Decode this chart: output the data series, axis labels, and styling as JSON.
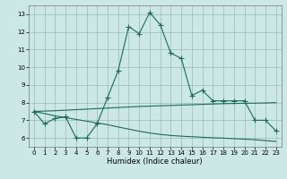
{
  "xlabel": "Humidex (Indice chaleur)",
  "x": [
    0,
    1,
    2,
    3,
    4,
    5,
    6,
    7,
    8,
    9,
    10,
    11,
    12,
    13,
    14,
    15,
    16,
    17,
    18,
    19,
    20,
    21,
    22,
    23
  ],
  "y_peak": [
    7.5,
    6.8,
    7.1,
    7.2,
    6.0,
    6.0,
    6.8,
    8.3,
    9.8,
    12.3,
    11.9,
    13.1,
    12.4,
    10.8,
    10.5,
    8.4,
    8.7,
    8.1,
    8.1,
    8.1,
    8.1,
    7.0,
    7.0,
    6.4
  ],
  "y_upper": [
    7.5,
    7.52,
    7.54,
    7.57,
    7.6,
    7.63,
    7.66,
    7.69,
    7.72,
    7.75,
    7.78,
    7.8,
    7.82,
    7.84,
    7.86,
    7.88,
    7.9,
    7.92,
    7.94,
    7.95,
    7.96,
    7.97,
    7.98,
    8.0
  ],
  "y_lower": [
    7.5,
    7.38,
    7.25,
    7.15,
    7.05,
    6.95,
    6.85,
    6.75,
    6.62,
    6.5,
    6.38,
    6.28,
    6.2,
    6.14,
    6.1,
    6.07,
    6.04,
    6.01,
    5.99,
    5.96,
    5.93,
    5.9,
    5.85,
    5.8
  ],
  "bg_color": "#cce8e4",
  "line_color": "#1a6b5a",
  "grid_color": "#99bbbb",
  "ylim": [
    5.5,
    13.5
  ],
  "xlim": [
    -0.5,
    23.5
  ],
  "yticks": [
    6,
    7,
    8,
    9,
    10,
    11,
    12,
    13
  ],
  "xticks": [
    0,
    1,
    2,
    3,
    4,
    5,
    6,
    7,
    8,
    9,
    10,
    11,
    12,
    13,
    14,
    15,
    16,
    17,
    18,
    19,
    20,
    21,
    22,
    23
  ]
}
